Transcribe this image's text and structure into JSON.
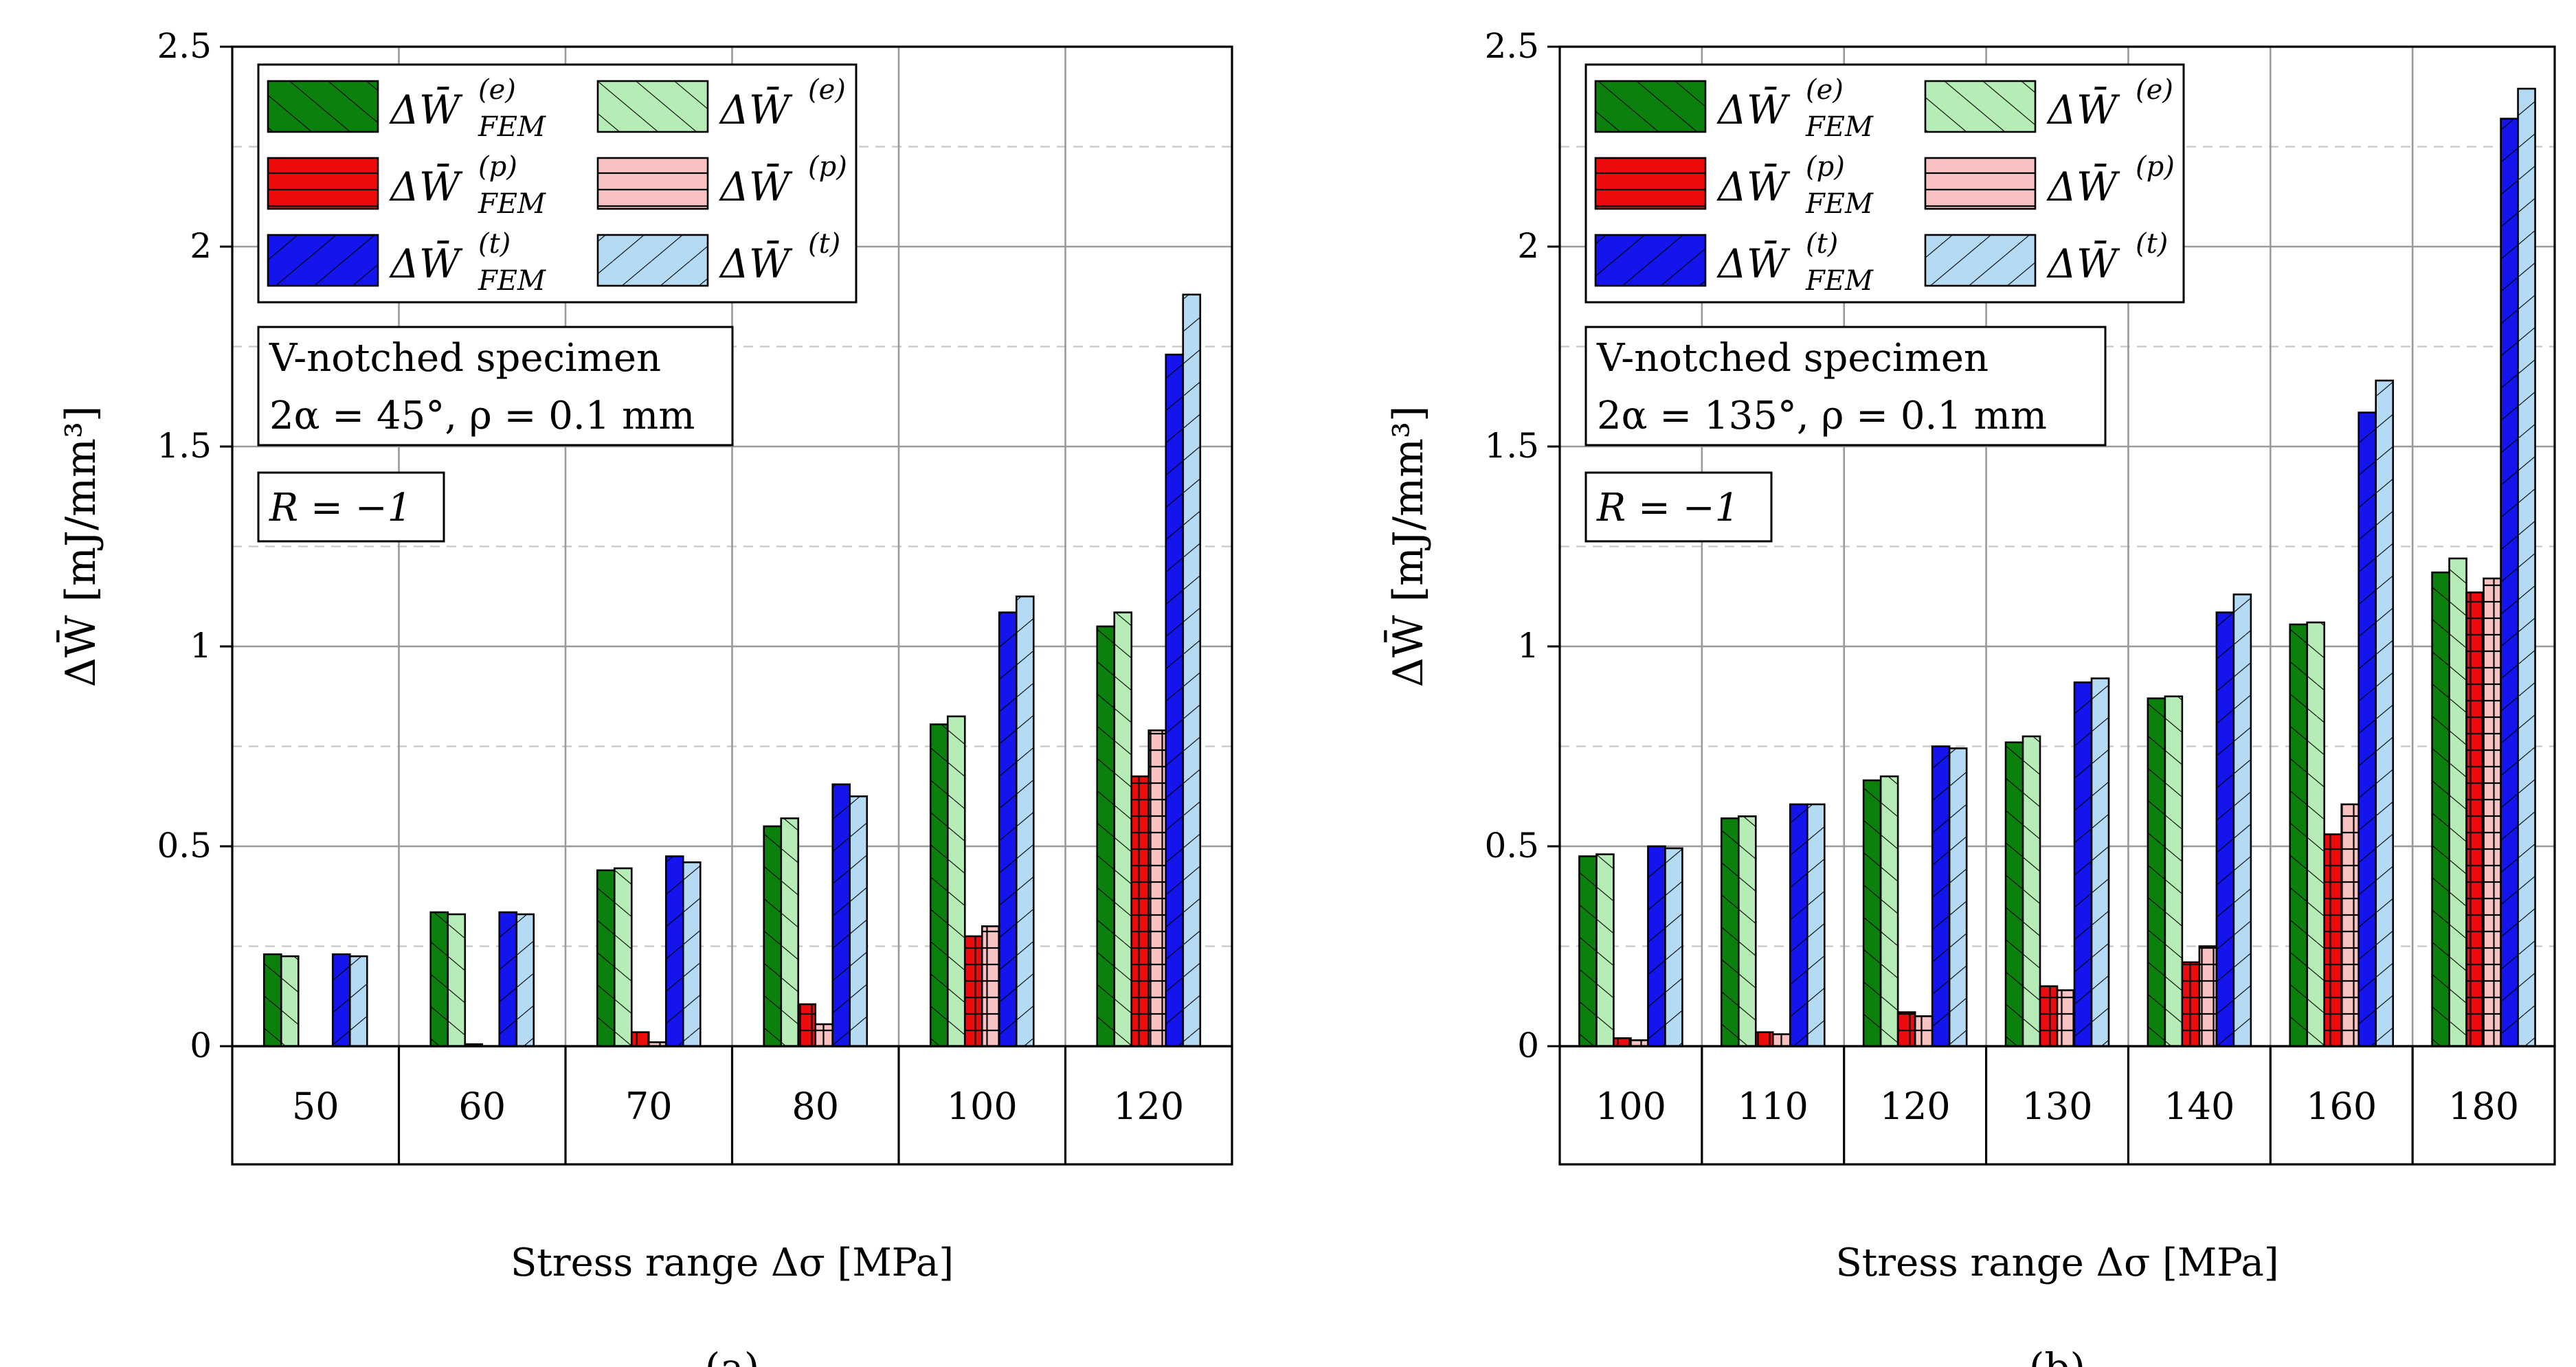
{
  "chart_data": [
    {
      "type": "bar",
      "caption": "(a)",
      "xlabel": "Stress range Δσ [MPa]",
      "ylabel": "ΔW̄ [mJ/mm³]",
      "ylim": [
        0,
        2.5
      ],
      "yticks": [
        "0",
        "0.5",
        "1",
        "1.5",
        "2",
        "2.5"
      ],
      "categories": [
        "50",
        "60",
        "70",
        "80",
        "100",
        "120"
      ],
      "annotation_lines": [
        "V-notched specimen",
        "2α = 45°, ρ = 0.1 mm"
      ],
      "ratio_label": "R = −1",
      "series": [
        {
          "name": "ΔW̄(e) FEM",
          "values": [
            0.23,
            0.335,
            0.44,
            0.55,
            0.805,
            1.05
          ]
        },
        {
          "name": "ΔW̄(e)",
          "values": [
            0.225,
            0.33,
            0.445,
            0.57,
            0.825,
            1.085
          ]
        },
        {
          "name": "ΔW̄(p) FEM",
          "values": [
            0.0,
            0.005,
            0.035,
            0.105,
            0.275,
            0.675
          ]
        },
        {
          "name": "ΔW̄(p)",
          "values": [
            0.0,
            0.0,
            0.01,
            0.055,
            0.3,
            0.79
          ]
        },
        {
          "name": "ΔW̄(t) FEM",
          "values": [
            0.23,
            0.335,
            0.475,
            0.655,
            1.085,
            1.73
          ]
        },
        {
          "name": "ΔW̄(t)",
          "values": [
            0.225,
            0.33,
            0.46,
            0.625,
            1.125,
            1.88
          ]
        }
      ]
    },
    {
      "type": "bar",
      "caption": "(b)",
      "xlabel": "Stress range Δσ [MPa]",
      "ylabel": "ΔW̄ [mJ/mm³]",
      "ylim": [
        0,
        2.5
      ],
      "yticks": [
        "0",
        "0.5",
        "1",
        "1.5",
        "2",
        "2.5"
      ],
      "categories": [
        "100",
        "110",
        "120",
        "130",
        "140",
        "160",
        "180"
      ],
      "annotation_lines": [
        "V-notched specimen",
        "2α = 135°, ρ = 0.1 mm"
      ],
      "ratio_label": "R = −1",
      "series": [
        {
          "name": "ΔW̄(e) FEM",
          "values": [
            0.475,
            0.57,
            0.665,
            0.76,
            0.87,
            1.055,
            1.185
          ]
        },
        {
          "name": "ΔW̄(e)",
          "values": [
            0.48,
            0.575,
            0.675,
            0.775,
            0.875,
            1.06,
            1.22
          ]
        },
        {
          "name": "ΔW̄(p) FEM",
          "values": [
            0.02,
            0.035,
            0.085,
            0.15,
            0.21,
            0.53,
            1.135
          ]
        },
        {
          "name": "ΔW̄(p)",
          "values": [
            0.015,
            0.03,
            0.075,
            0.14,
            0.25,
            0.605,
            1.17
          ]
        },
        {
          "name": "ΔW̄(t) FEM",
          "values": [
            0.5,
            0.605,
            0.75,
            0.91,
            1.085,
            1.585,
            2.32
          ]
        },
        {
          "name": "ΔW̄(t)",
          "values": [
            0.495,
            0.605,
            0.745,
            0.92,
            1.13,
            1.665,
            2.395
          ]
        }
      ]
    }
  ],
  "colors": {
    "elastic_fem": "#0c800c",
    "elastic": "#b6ecb6",
    "plastic_fem": "#ee0b0b",
    "plastic": "#f9c2c2",
    "total_fem": "#1414ec",
    "total": "#b5daf3",
    "grid": "#9a9a9a",
    "dashed_grid": "#c6c6c6"
  },
  "legend": {
    "symbol": "ΔW̄",
    "labels": [
      {
        "key": "elastic_fem",
        "sup": "(e)",
        "sub": "FEM"
      },
      {
        "key": "elastic",
        "sup": "(e)",
        "sub": ""
      },
      {
        "key": "plastic_fem",
        "sup": "(p)",
        "sub": "FEM"
      },
      {
        "key": "plastic",
        "sup": "(p)",
        "sub": ""
      },
      {
        "key": "total_fem",
        "sup": "(t)",
        "sub": "FEM"
      },
      {
        "key": "total",
        "sup": "(t)",
        "sub": ""
      }
    ]
  }
}
